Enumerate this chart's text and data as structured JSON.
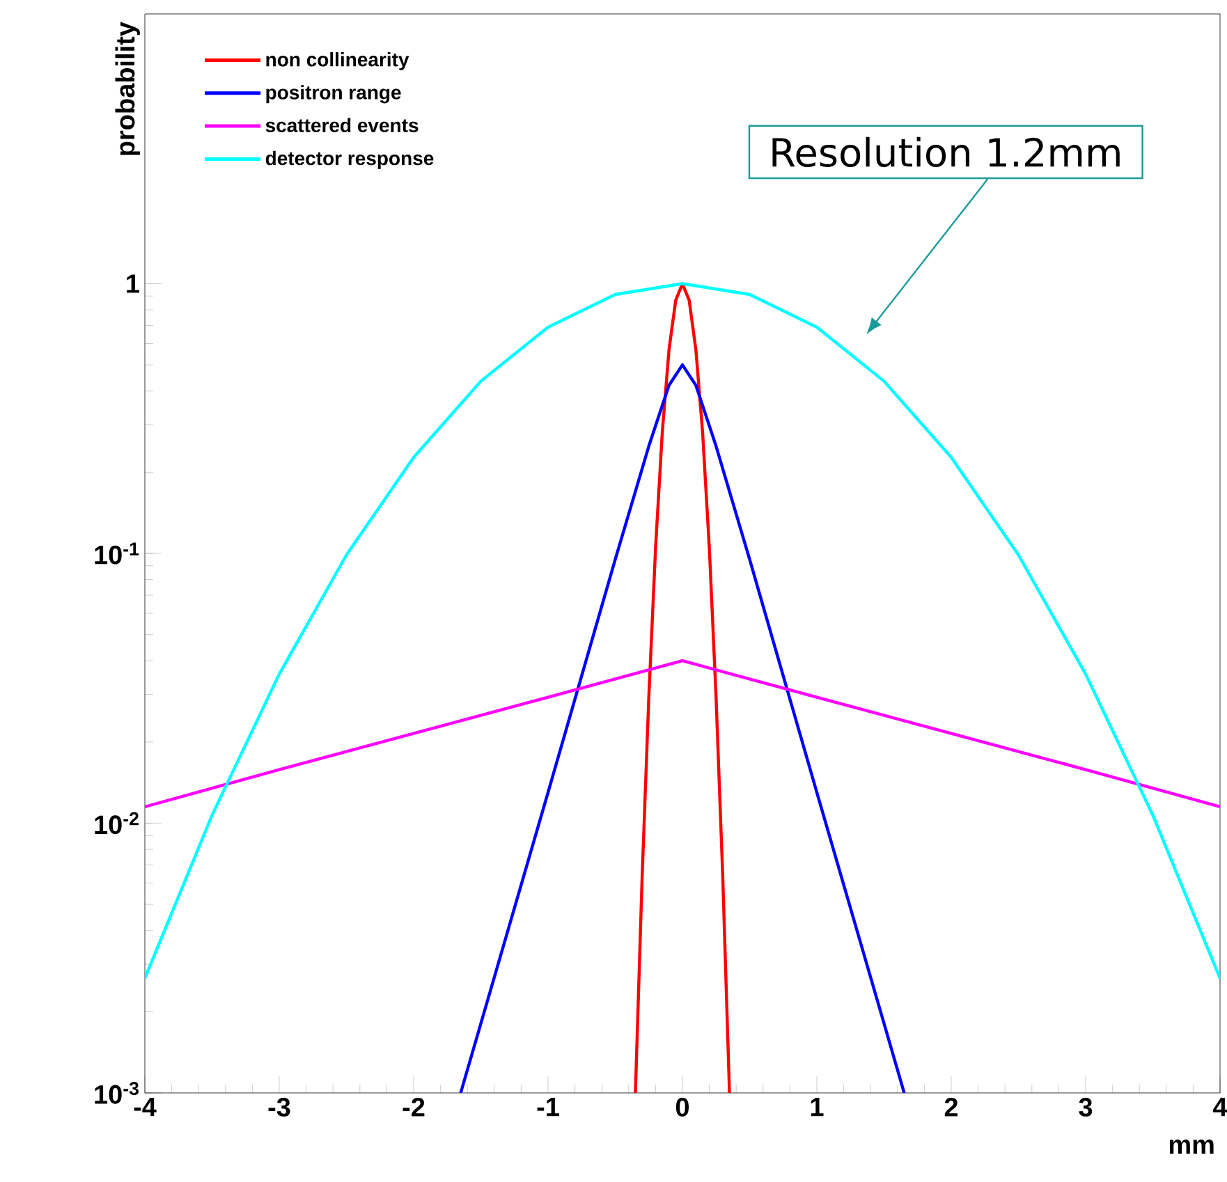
{
  "chart_data": {
    "type": "line",
    "xlabel": "mm",
    "ylabel": "probability",
    "log": "y",
    "legend": "top left",
    "xlim": [
      -4,
      4
    ],
    "ylim": [
      0.001,
      10
    ],
    "xticks": [
      -4,
      -3,
      -2,
      -1,
      0,
      1,
      2,
      3,
      4
    ],
    "yticks": [
      {
        "value": 0.001,
        "label": "10$^{-3}$"
      },
      {
        "value": 0.01,
        "label": "10$^{-2}$"
      },
      {
        "value": 0.1,
        "label": "10$^{-1}$"
      },
      {
        "value": 1,
        "label": "1"
      }
    ],
    "annotations": [
      "Resolution 1.2mm"
    ],
    "series": [
      {
        "name": "non collinearity",
        "color": "#ff0000",
        "x": [
          -0.35,
          -0.3,
          -0.25,
          -0.2,
          -0.15,
          -0.1,
          -0.05,
          0,
          0.05,
          0.1,
          0.15,
          0.2,
          0.25,
          0.3,
          0.35
        ],
        "values": [
          0.001,
          0.0063,
          0.0295,
          0.105,
          0.281,
          0.569,
          0.868,
          1,
          0.868,
          0.569,
          0.281,
          0.105,
          0.0295,
          0.0063,
          0.001
        ]
      },
      {
        "name": "positron range",
        "color": "#0000ff",
        "x": [
          -1.65,
          -1,
          -0.5,
          -0.25,
          -0.1,
          0,
          0.1,
          0.25,
          0.5,
          1,
          1.65
        ],
        "values": [
          0.001,
          0.013,
          0.095,
          0.25,
          0.42,
          0.5,
          0.42,
          0.25,
          0.095,
          0.013,
          0.001
        ]
      },
      {
        "name": "scattered events",
        "color": "#ff00ff",
        "x": [
          -4,
          -3,
          -2,
          -1,
          0,
          1,
          2,
          3,
          4
        ],
        "values": [
          0.0115,
          0.0158,
          0.0215,
          0.0293,
          0.04,
          0.0293,
          0.0215,
          0.0158,
          0.0115
        ]
      },
      {
        "name": "detector response",
        "color": "#00ffff",
        "x": [
          -4,
          -3.5,
          -3,
          -2.5,
          -2,
          -1.5,
          -1,
          -0.5,
          0,
          0.5,
          1,
          1.5,
          2,
          2.5,
          3,
          3.5,
          4
        ],
        "values": [
          0.00266,
          0.0107,
          0.0357,
          0.0987,
          0.227,
          0.435,
          0.69,
          0.912,
          1,
          0.912,
          0.69,
          0.435,
          0.227,
          0.0987,
          0.0357,
          0.0107,
          0.00266
        ]
      }
    ]
  }
}
